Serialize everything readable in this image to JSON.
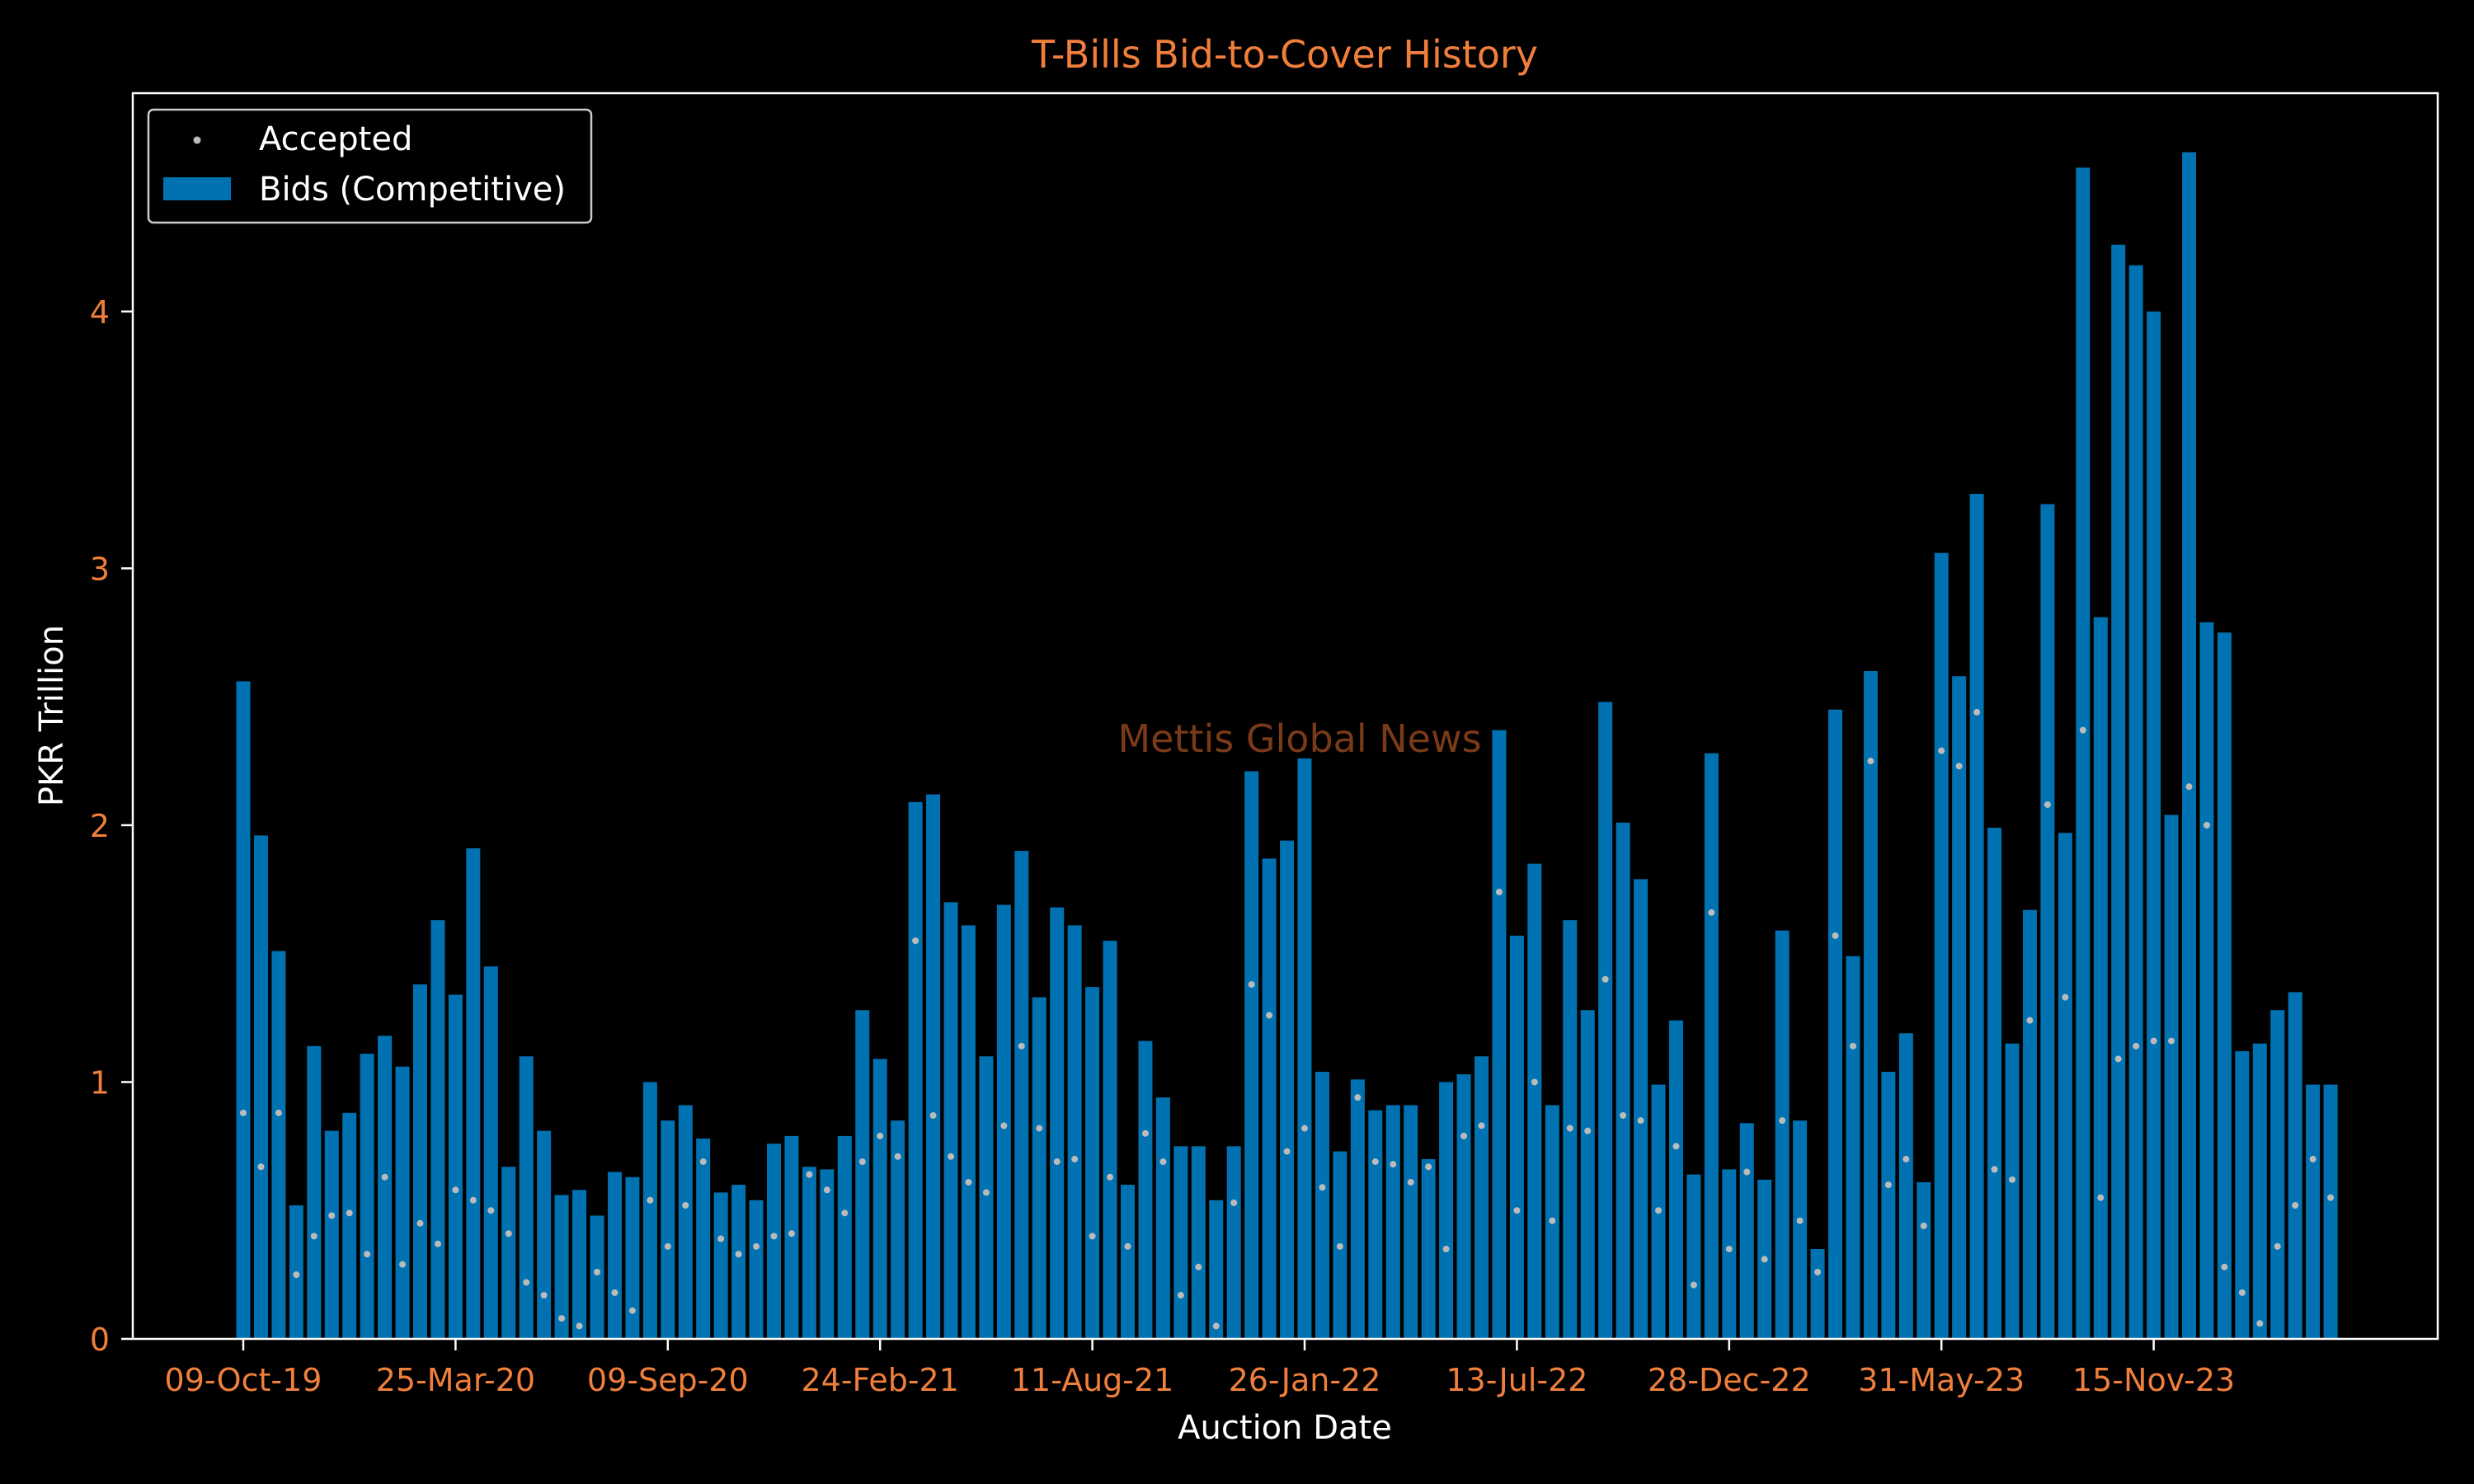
{
  "chart_data": {
    "type": "bar",
    "title": "T-Bills Bid-to-Cover History",
    "xlabel": "Auction Date",
    "ylabel": "PKR Trillion",
    "watermark": "Mettis Global News",
    "ylim": [
      0,
      4.85
    ],
    "yticks": [
      0,
      1,
      2,
      3,
      4
    ],
    "xtick_labels": [
      "09-Oct-19",
      "25-Mar-20",
      "09-Sep-20",
      "24-Feb-21",
      "11-Aug-21",
      "26-Jan-22",
      "13-Jul-22",
      "28-Dec-22",
      "31-May-23",
      "15-Nov-23"
    ],
    "xtick_every": 12,
    "grid": false,
    "legend": {
      "placement": "top-left",
      "entries": [
        "Accepted",
        "Bids (Competitive)"
      ]
    },
    "colors": {
      "background": "#000000",
      "bar": "#0072B2",
      "accepted": "#BBBBBB",
      "accent_text": "#F07F3C",
      "axis": "#FFFFFF"
    },
    "series": [
      {
        "name": "Bids (Competitive)",
        "values": [
          2.56,
          1.96,
          1.51,
          0.52,
          1.14,
          0.81,
          0.88,
          1.11,
          1.18,
          1.06,
          1.38,
          1.63,
          1.34,
          1.91,
          1.45,
          0.67,
          1.1,
          0.81,
          0.56,
          0.58,
          0.48,
          0.65,
          0.63,
          1.0,
          0.85,
          0.91,
          0.78,
          0.57,
          0.6,
          0.54,
          0.76,
          0.79,
          0.67,
          0.66,
          0.79,
          1.28,
          1.09,
          0.85,
          2.09,
          2.12,
          1.7,
          1.61,
          1.1,
          1.69,
          1.9,
          1.33,
          1.68,
          1.61,
          1.37,
          1.55,
          0.6,
          1.16,
          0.94,
          0.75,
          0.75,
          0.54,
          0.75,
          2.21,
          1.87,
          1.94,
          2.26,
          1.04,
          0.73,
          1.01,
          0.89,
          0.91,
          0.91,
          0.7,
          1.0,
          1.03,
          1.1,
          2.37,
          1.57,
          1.85,
          0.91,
          1.63,
          1.28,
          2.48,
          2.01,
          1.79,
          0.99,
          1.24,
          0.64,
          2.28,
          0.66,
          0.84,
          0.62,
          1.59,
          0.85,
          0.35,
          2.45,
          1.49,
          2.6,
          1.04,
          1.19,
          0.61,
          3.06,
          2.58,
          3.29,
          1.99,
          1.15,
          1.67,
          3.25,
          1.97,
          4.56,
          2.81,
          4.26,
          4.18,
          4.0,
          2.04,
          4.62,
          2.79,
          2.75,
          1.12,
          1.15,
          1.28,
          1.35,
          0.99,
          0.99
        ]
      },
      {
        "name": "Accepted",
        "values": [
          0.88,
          0.67,
          0.88,
          0.25,
          0.4,
          0.48,
          0.49,
          0.33,
          0.63,
          0.29,
          0.45,
          0.37,
          0.58,
          0.54,
          0.5,
          0.41,
          0.22,
          0.17,
          0.08,
          0.05,
          0.26,
          0.18,
          0.11,
          0.54,
          0.36,
          0.52,
          0.69,
          0.39,
          0.33,
          0.36,
          0.4,
          0.41,
          0.64,
          0.58,
          0.49,
          0.69,
          0.79,
          0.71,
          1.55,
          0.87,
          0.71,
          0.61,
          0.57,
          0.83,
          1.14,
          0.82,
          0.69,
          0.7,
          0.4,
          0.63,
          0.36,
          0.8,
          0.69,
          0.17,
          0.28,
          0.05,
          0.53,
          1.38,
          1.26,
          0.73,
          0.82,
          0.59,
          0.36,
          0.94,
          0.69,
          0.68,
          0.61,
          0.67,
          0.35,
          0.79,
          0.83,
          1.74,
          0.5,
          1.0,
          0.46,
          0.82,
          0.81,
          1.4,
          0.87,
          0.85,
          0.5,
          0.75,
          0.21,
          1.66,
          0.35,
          0.65,
          0.31,
          0.85,
          0.46,
          0.26,
          1.57,
          1.14,
          2.25,
          0.6,
          0.7,
          0.44,
          2.29,
          2.23,
          2.44,
          0.66,
          0.62,
          1.24,
          2.08,
          1.33,
          2.37,
          0.55,
          1.09,
          1.14,
          1.16,
          1.16,
          2.15,
          2.0,
          0.28,
          0.18,
          0.06,
          0.36,
          0.52,
          0.7,
          0.55
        ]
      }
    ]
  }
}
